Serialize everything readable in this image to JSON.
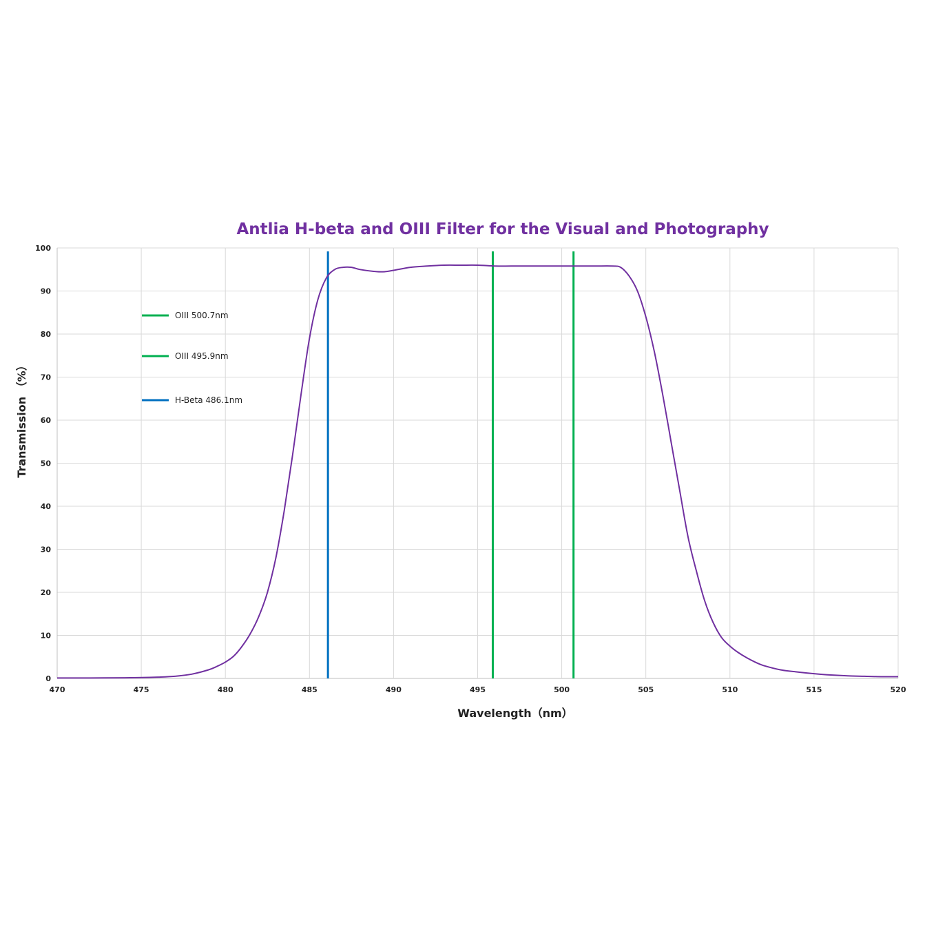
{
  "chart_data": {
    "type": "line",
    "title": "Antlia H-beta and OIII Filter for the Visual and Photography",
    "xlabel": "Wavelength（nm）",
    "ylabel": "Transmission （%）",
    "xlim": [
      470,
      520
    ],
    "ylim": [
      0,
      100
    ],
    "x_ticks": [
      "470",
      "475",
      "480",
      "485",
      "490",
      "495",
      "500",
      "505",
      "510",
      "515",
      "520"
    ],
    "y_ticks": [
      "0",
      "10",
      "20",
      "30",
      "40",
      "50",
      "60",
      "70",
      "80",
      "90",
      "100"
    ],
    "grid": true,
    "legend_position": "top-left",
    "curve_color": "#7030a0",
    "series": [
      {
        "x": [
          470,
          472,
          474,
          475,
          476,
          477,
          478,
          479,
          479.5,
          480,
          480.5,
          481,
          481.5,
          482,
          482.5,
          483,
          483.5,
          484,
          484.5,
          485,
          485.5,
          486,
          486.5,
          487,
          487.5,
          488,
          489,
          489.5,
          490,
          491,
          492,
          493,
          494,
          495,
          496,
          497,
          498,
          499,
          500,
          501,
          502,
          503,
          503.5,
          504,
          504.5,
          505,
          505.5,
          506,
          506.5,
          507,
          507.5,
          508,
          508.5,
          509,
          509.5,
          510,
          510.5,
          511,
          511.5,
          512,
          513,
          514,
          515,
          516,
          517,
          518,
          519,
          520
        ],
        "y": [
          0.1,
          0.1,
          0.15,
          0.2,
          0.3,
          0.5,
          1.0,
          2.0,
          2.8,
          3.8,
          5.2,
          7.5,
          10.5,
          14.5,
          20,
          28,
          39,
          52,
          66,
          79,
          88,
          93,
          95,
          95.5,
          95.5,
          95.0,
          94.5,
          94.5,
          94.8,
          95.5,
          95.8,
          96.0,
          96.0,
          96.0,
          95.8,
          95.8,
          95.8,
          95.8,
          95.8,
          95.8,
          95.8,
          95.8,
          95.5,
          93.5,
          90,
          84,
          76,
          66,
          55,
          44,
          33,
          25,
          18,
          13,
          9.5,
          7.5,
          6.0,
          4.8,
          3.8,
          3.0,
          2.0,
          1.5,
          1.1,
          0.8,
          0.6,
          0.5,
          0.4,
          0.4
        ]
      }
    ],
    "markers": [
      {
        "label": "OIII 500.7nm",
        "x": 500.7,
        "color": "#00b050"
      },
      {
        "label": "OIII 495.9nm",
        "x": 495.9,
        "color": "#00b050"
      },
      {
        "label": "H-Beta 486.1nm",
        "x": 486.1,
        "color": "#0070c0"
      }
    ]
  }
}
